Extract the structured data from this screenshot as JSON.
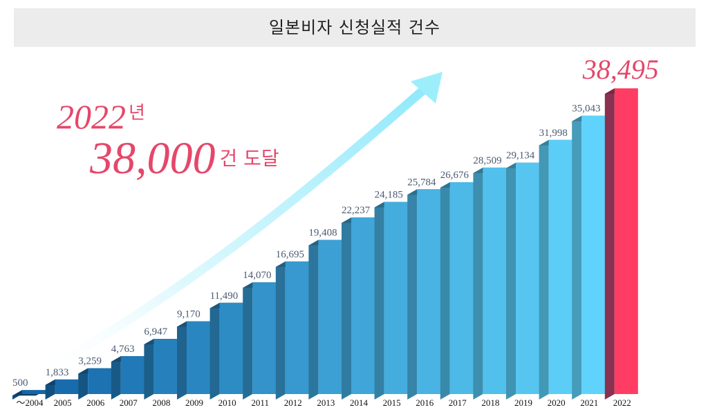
{
  "title": "일본비자 신청실적 건수",
  "headline": {
    "year": "2022",
    "year_suffix": "년",
    "count": "38,000",
    "count_suffix": "건 도달"
  },
  "colors": {
    "bar_front_dark": "#1466a8",
    "bar_front_light": "#5fd3fb",
    "highlight_front": "#ff3d64",
    "highlight_side": "#8a3050",
    "arrow": "#9deefb",
    "headline_text": "#e5476a"
  },
  "chart_data": {
    "type": "bar",
    "title": "일본비자 신청실적 건수",
    "xlabel": "",
    "ylabel": "",
    "categories": [
      "～2004",
      "2005",
      "2006",
      "2007",
      "2008",
      "2009",
      "2010",
      "2011",
      "2012",
      "2013",
      "2014",
      "2015",
      "2016",
      "2017",
      "2018",
      "2019",
      "2020",
      "2021",
      "2022"
    ],
    "values": [
      500,
      1833,
      3259,
      4763,
      6947,
      9170,
      11490,
      14070,
      16695,
      19408,
      22237,
      24185,
      25784,
      26676,
      28509,
      29134,
      31998,
      35043,
      38495
    ],
    "value_labels": [
      "500",
      "1,833",
      "3,259",
      "4,763",
      "6,947",
      "9,170",
      "11,490",
      "14,070",
      "16,695",
      "19,408",
      "22,237",
      "24,185",
      "25,784",
      "26,676",
      "28,509",
      "29,134",
      "31,998",
      "35,043",
      "38,495"
    ],
    "highlight_index": 18,
    "grid": false,
    "legend": "none"
  }
}
